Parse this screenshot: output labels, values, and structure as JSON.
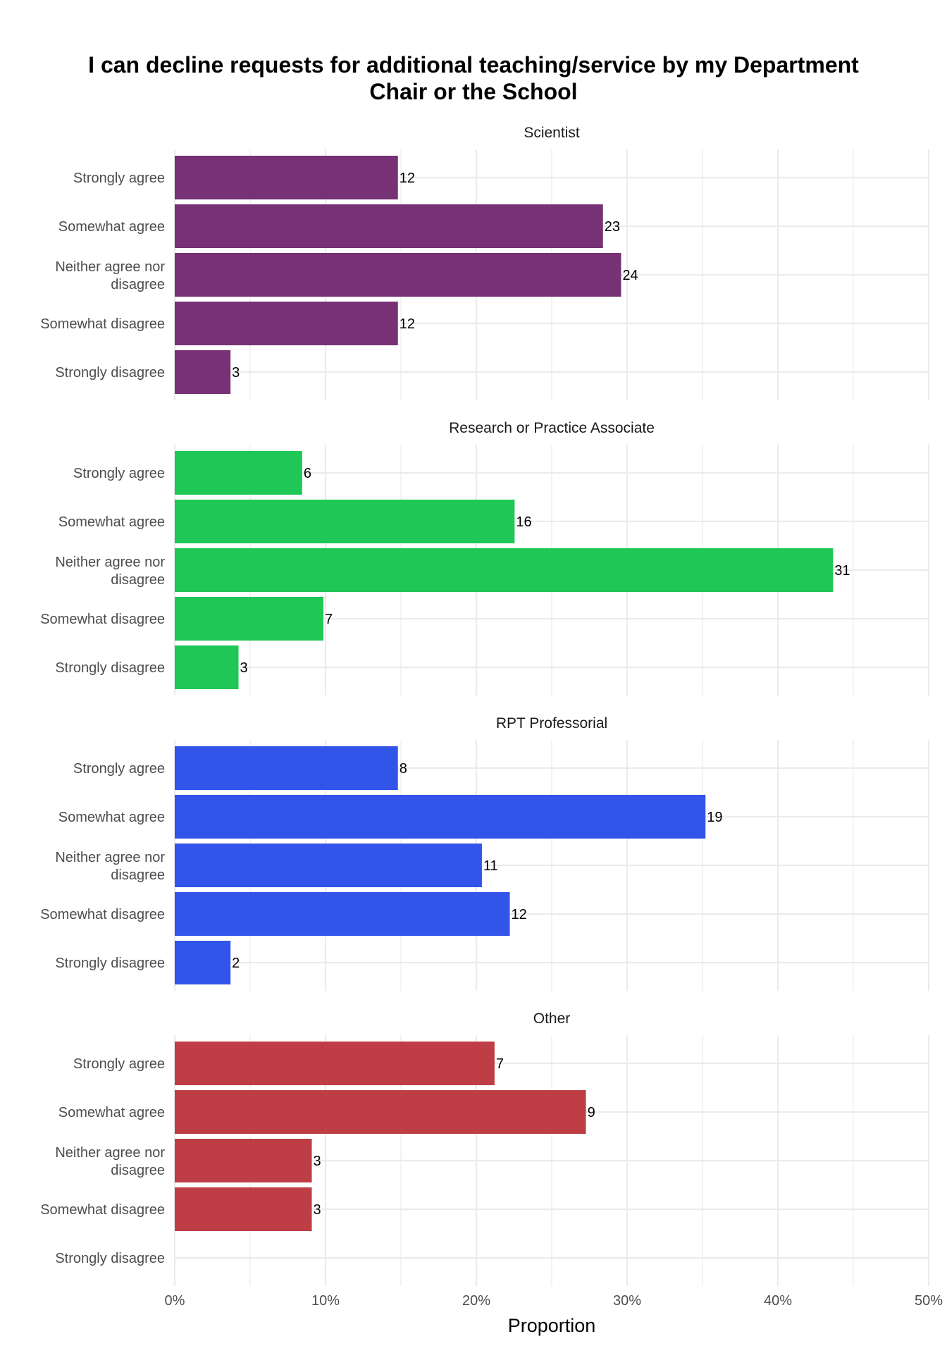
{
  "chart_data": {
    "type": "bar",
    "orientation": "horizontal",
    "title_line1": "I can decline requests for additional teaching/service by my Department",
    "title_line2": "Chair or the School",
    "xlabel": "Proportion",
    "ylabel": "",
    "xlim": [
      0,
      0.5
    ],
    "x_ticks": [
      {
        "value": 0.0,
        "label": "0%"
      },
      {
        "value": 0.1,
        "label": "10%"
      },
      {
        "value": 0.2,
        "label": "20%"
      },
      {
        "value": 0.3,
        "label": "30%"
      },
      {
        "value": 0.4,
        "label": "40%"
      },
      {
        "value": 0.5,
        "label": "50%"
      }
    ],
    "grid": true,
    "legend": "none",
    "category_labels": [
      [
        "Strongly agree"
      ],
      [
        "Somewhat agree"
      ],
      [
        "Neither agree nor",
        "disagree"
      ],
      [
        "Somewhat disagree"
      ],
      [
        "Strongly disagree"
      ]
    ],
    "panels": [
      {
        "title": "Scientist",
        "color": "#773175",
        "counts": [
          12,
          23,
          24,
          12,
          3
        ],
        "proportions": [
          0.148,
          0.284,
          0.296,
          0.148,
          0.037
        ]
      },
      {
        "title": "Research or Practice Associate",
        "color": "#1ec756",
        "counts": [
          6,
          16,
          31,
          7,
          3
        ],
        "proportions": [
          0.0845,
          0.2254,
          0.4366,
          0.0986,
          0.0423
        ]
      },
      {
        "title": "RPT Professorial",
        "color": "#3354e8",
        "counts": [
          8,
          19,
          11,
          12,
          2
        ],
        "proportions": [
          0.148,
          0.352,
          0.2037,
          0.2222,
          0.037
        ]
      },
      {
        "title": "Other",
        "color": "#bf3e45",
        "counts": [
          7,
          9,
          3,
          3,
          null
        ],
        "proportions": [
          0.2121,
          0.2727,
          0.0909,
          0.0909,
          0
        ]
      }
    ]
  }
}
